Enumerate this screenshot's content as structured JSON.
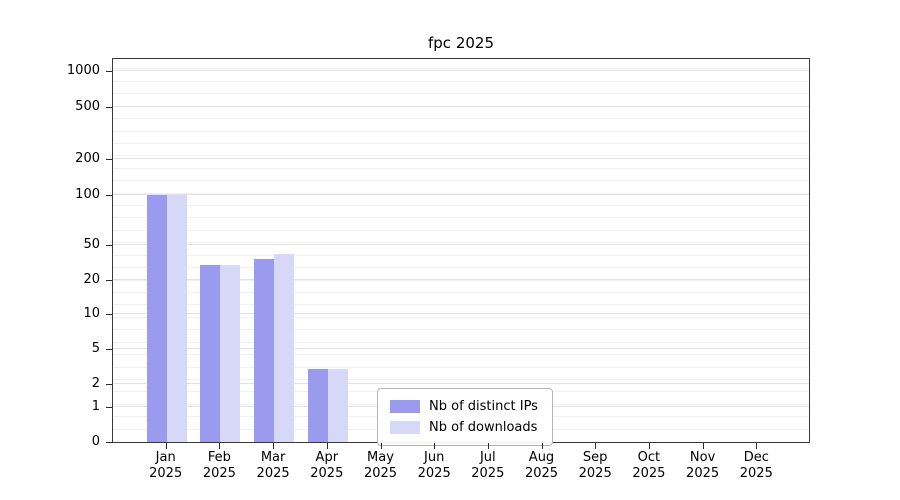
{
  "chart_data": {
    "type": "bar",
    "title": "fpc 2025",
    "categories": [
      {
        "month": "Jan",
        "year": "2025"
      },
      {
        "month": "Feb",
        "year": "2025"
      },
      {
        "month": "Mar",
        "year": "2025"
      },
      {
        "month": "Apr",
        "year": "2025"
      },
      {
        "month": "May",
        "year": "2025"
      },
      {
        "month": "Jun",
        "year": "2025"
      },
      {
        "month": "Jul",
        "year": "2025"
      },
      {
        "month": "Aug",
        "year": "2025"
      },
      {
        "month": "Sep",
        "year": "2025"
      },
      {
        "month": "Oct",
        "year": "2025"
      },
      {
        "month": "Nov",
        "year": "2025"
      },
      {
        "month": "Dec",
        "year": "2025"
      }
    ],
    "series": [
      {
        "name": "Nb of distinct IPs",
        "color": "#9a9aee",
        "values": [
          100,
          30,
          35,
          3,
          0,
          0,
          0,
          0,
          0,
          0,
          0,
          0
        ]
      },
      {
        "name": "Nb of downloads",
        "color": "#d7d7f8",
        "values": [
          100,
          30,
          40,
          3,
          0,
          0,
          0,
          0,
          0,
          0,
          0,
          0
        ]
      }
    ],
    "y_ticks": [
      0,
      1,
      2,
      5,
      10,
      20,
      50,
      100,
      200,
      500,
      1000
    ],
    "ylim": [
      0,
      1300
    ],
    "xlabel": "",
    "ylabel": "",
    "grid": true,
    "legend_position": "lower-center"
  }
}
